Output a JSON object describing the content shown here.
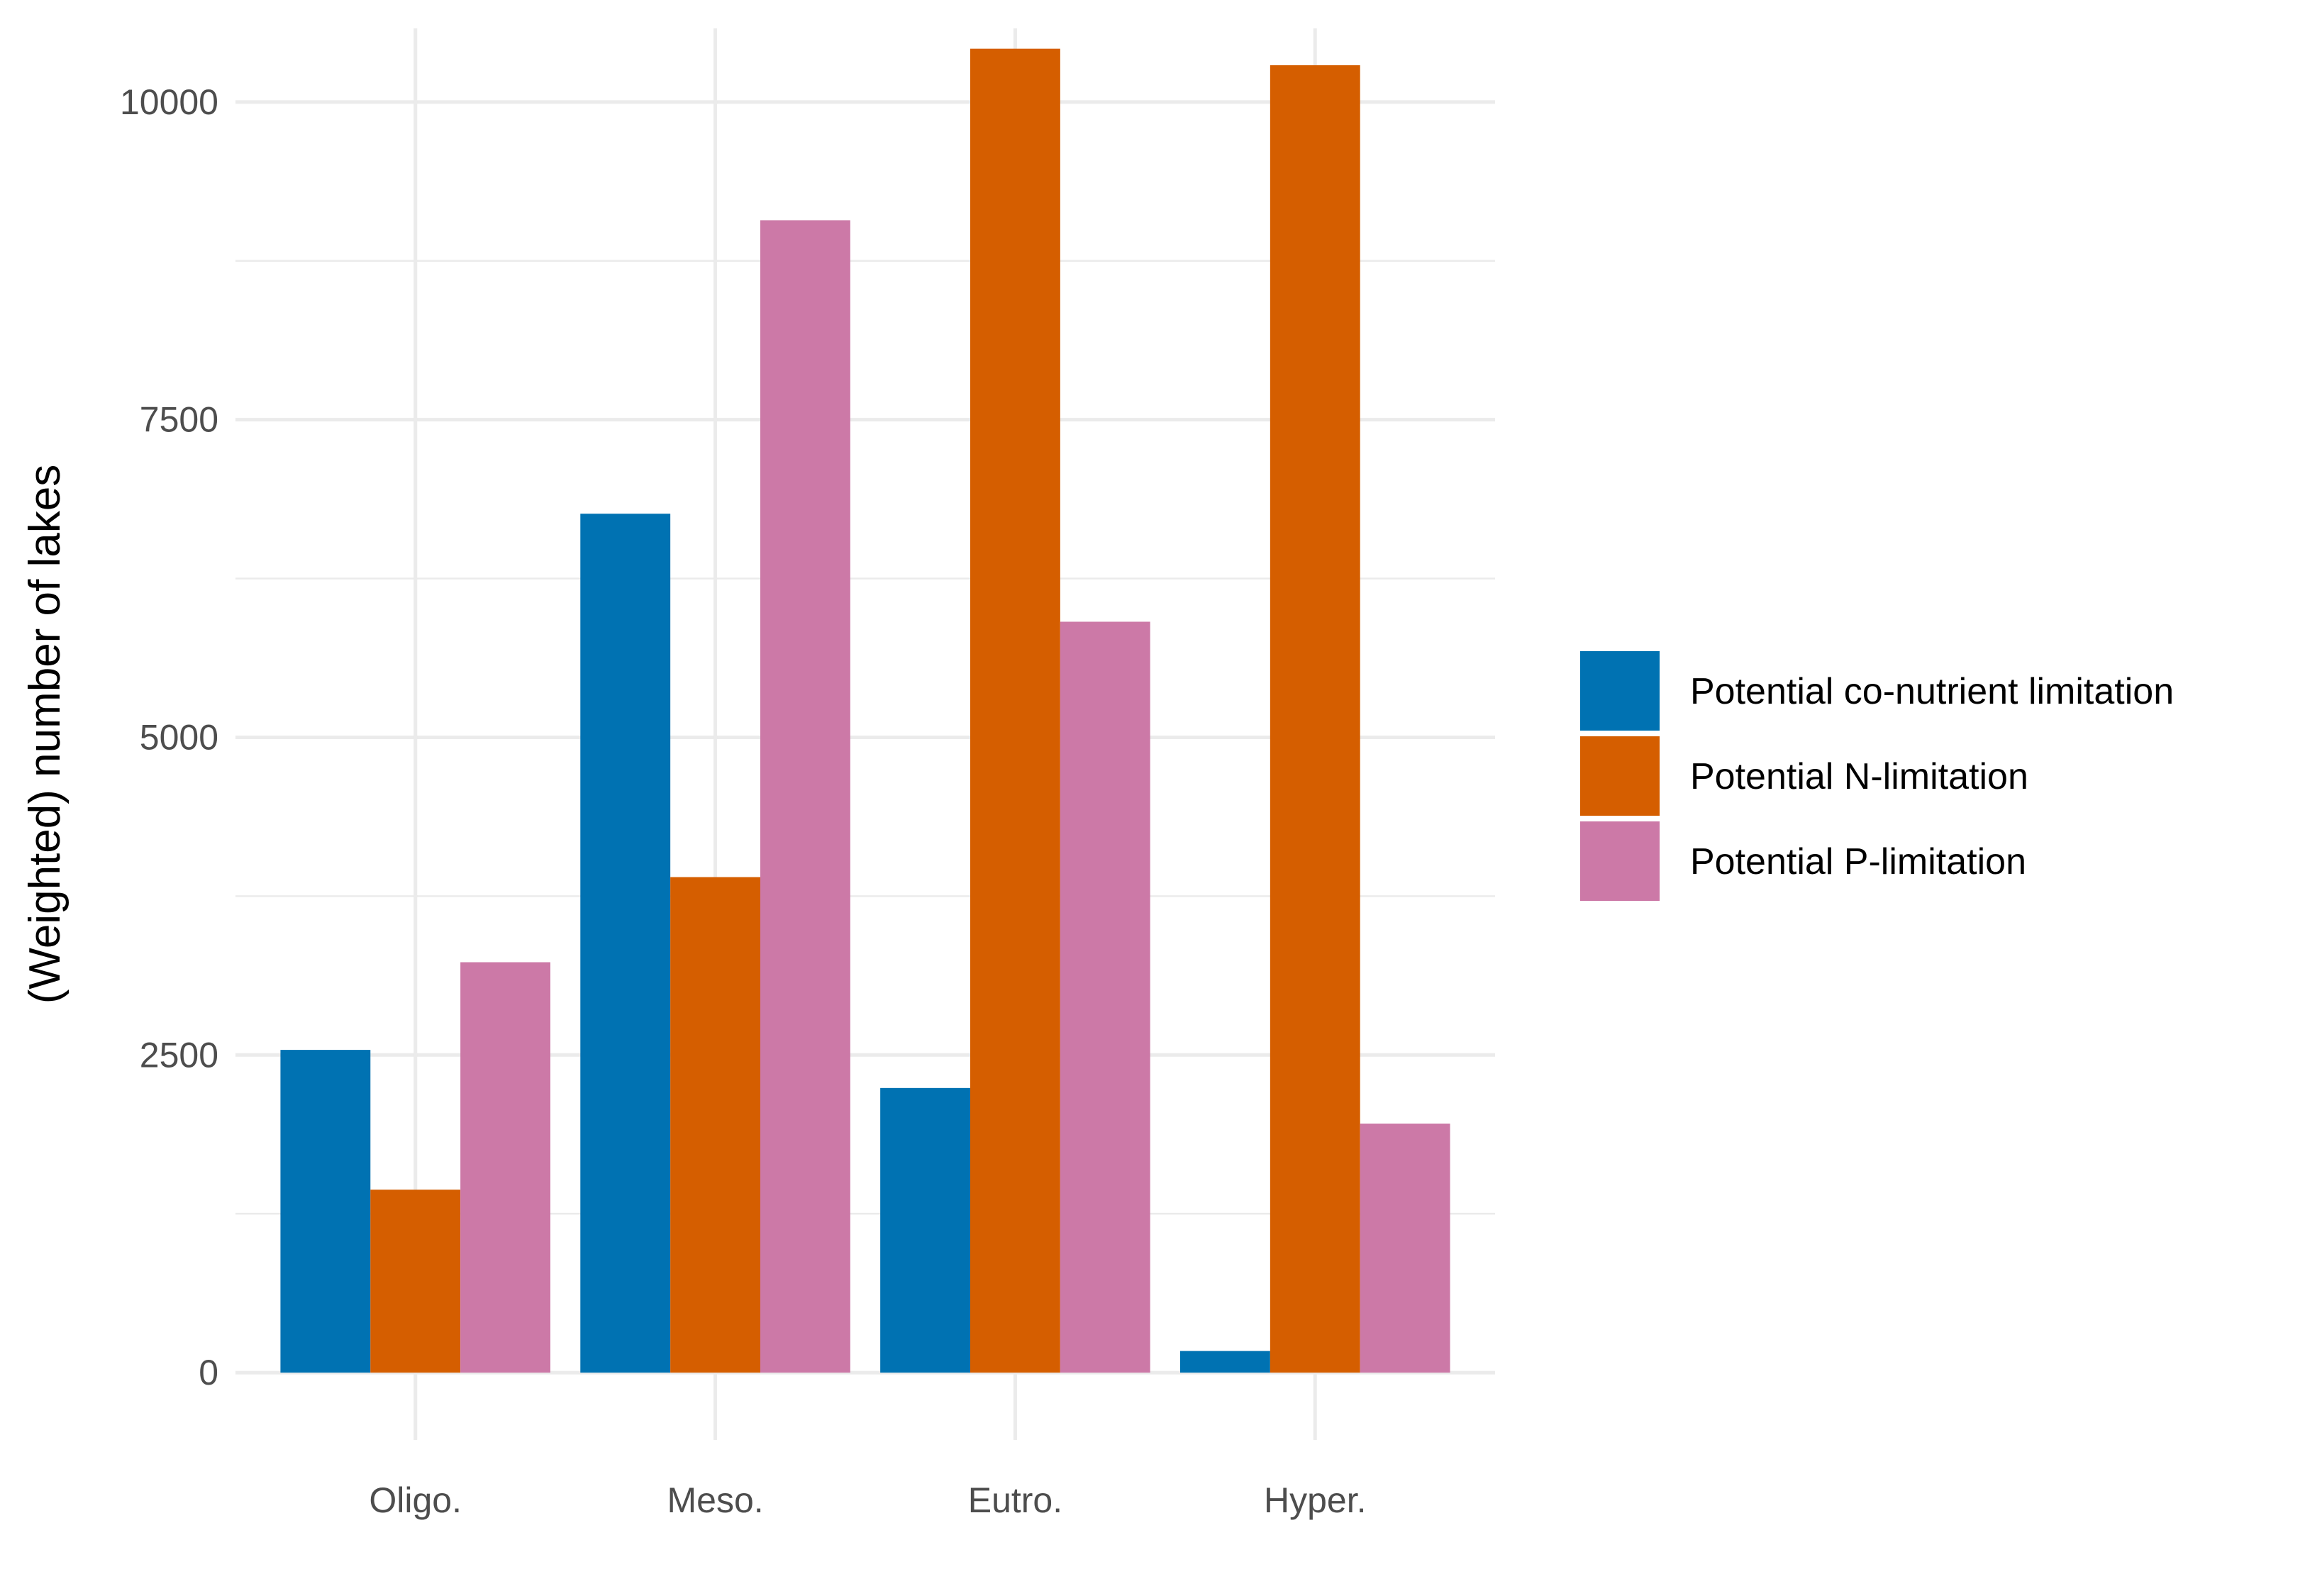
{
  "chart_data": {
    "type": "bar",
    "title": "",
    "xlabel": "",
    "ylabel": "(Weighted) number of lakes",
    "categories": [
      "Oligo.",
      "Meso.",
      "Eutro.",
      "Hyper."
    ],
    "series": [
      {
        "name": "Potential co-nutrient limitation",
        "color": "#0072b2",
        "values": [
          2540,
          6760,
          2240,
          170
        ]
      },
      {
        "name": "Potential N-limitation",
        "color": "#d55e00",
        "values": [
          1440,
          3900,
          10420,
          10290
        ]
      },
      {
        "name": "Potential P-limitation",
        "color": "#cc79a7",
        "values": [
          3230,
          9070,
          5910,
          1960
        ]
      }
    ],
    "ylim": [
      -530,
      10580
    ],
    "yticks": [
      0,
      2500,
      5000,
      7500,
      10000
    ],
    "ytick_labels": [
      "0",
      "2500",
      "5000",
      "7500",
      "10000"
    ],
    "grid": true,
    "legend_position": "right"
  }
}
